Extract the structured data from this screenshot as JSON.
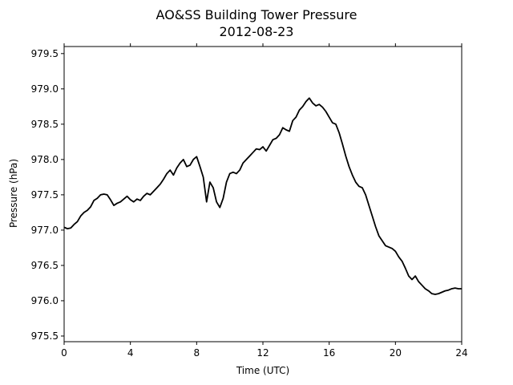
{
  "chart_data": {
    "type": "line",
    "title": "AO&SS Building Tower Pressure",
    "subtitle": "2012-08-23",
    "xlabel": "Time (UTC)",
    "ylabel": "Pressure (hPa)",
    "xlim": [
      0,
      24
    ],
    "ylim": [
      975.42,
      979.6
    ],
    "x_ticks": [
      0,
      4,
      8,
      12,
      16,
      20,
      24
    ],
    "x_tick_labels": [
      "0",
      "4",
      "8",
      "12",
      "16",
      "20",
      "24"
    ],
    "y_ticks": [
      975.5,
      976.0,
      976.5,
      977.0,
      977.5,
      978.0,
      978.5,
      979.0,
      979.5
    ],
    "y_tick_labels": [
      "975.5",
      "976.0",
      "976.5",
      "977.0",
      "977.5",
      "978.0",
      "978.5",
      "979.0",
      "979.5"
    ],
    "grid": false,
    "line_color": "#000000",
    "series": [
      {
        "x": [
          0.0,
          0.2,
          0.4,
          0.6,
          0.8,
          1.0,
          1.2,
          1.4,
          1.6,
          1.8,
          2.0,
          2.2,
          2.4,
          2.6,
          2.8,
          3.0,
          3.2,
          3.4,
          3.6,
          3.8,
          4.0,
          4.2,
          4.4,
          4.6,
          4.8,
          5.0,
          5.2,
          5.4,
          5.6,
          5.8,
          6.0,
          6.2,
          6.4,
          6.6,
          6.8,
          7.0,
          7.2,
          7.4,
          7.6,
          7.8,
          8.0,
          8.2,
          8.4,
          8.6,
          8.8,
          9.0,
          9.2,
          9.4,
          9.6,
          9.8,
          10.0,
          10.2,
          10.4,
          10.6,
          10.8,
          11.0,
          11.2,
          11.4,
          11.6,
          11.8,
          12.0,
          12.2,
          12.4,
          12.6,
          12.8,
          13.0,
          13.2,
          13.4,
          13.6,
          13.8,
          14.0,
          14.2,
          14.4,
          14.6,
          14.8,
          15.0,
          15.2,
          15.4,
          15.6,
          15.8,
          16.0,
          16.2,
          16.4,
          16.6,
          16.8,
          17.0,
          17.2,
          17.4,
          17.6,
          17.8,
          18.0,
          18.2,
          18.4,
          18.6,
          18.8,
          19.0,
          19.2,
          19.4,
          19.6,
          19.8,
          20.0,
          20.2,
          20.4,
          20.6,
          20.8,
          21.0,
          21.2,
          21.4,
          21.6,
          21.8,
          22.0,
          22.2,
          22.4,
          22.6,
          22.8,
          23.0,
          23.2,
          23.4,
          23.6,
          23.8,
          24.0
        ],
        "y": [
          977.04,
          977.02,
          977.03,
          977.08,
          977.12,
          977.2,
          977.25,
          977.28,
          977.33,
          977.42,
          977.45,
          977.5,
          977.51,
          977.5,
          977.43,
          977.35,
          977.38,
          977.4,
          977.44,
          977.48,
          977.43,
          977.4,
          977.44,
          977.42,
          977.48,
          977.52,
          977.5,
          977.55,
          977.6,
          977.65,
          977.72,
          977.8,
          977.85,
          977.78,
          977.88,
          977.95,
          978.0,
          977.9,
          977.92,
          978.0,
          978.04,
          977.9,
          977.75,
          977.4,
          977.68,
          977.6,
          977.4,
          977.32,
          977.45,
          977.68,
          977.8,
          977.82,
          977.8,
          977.85,
          977.95,
          978.0,
          978.05,
          978.1,
          978.15,
          978.14,
          978.18,
          978.12,
          978.2,
          978.28,
          978.3,
          978.35,
          978.45,
          978.42,
          978.4,
          978.55,
          978.6,
          978.7,
          978.75,
          978.82,
          978.87,
          978.8,
          978.76,
          978.78,
          978.74,
          978.68,
          978.6,
          978.52,
          978.5,
          978.38,
          978.22,
          978.05,
          977.9,
          977.78,
          977.68,
          977.62,
          977.6,
          977.5,
          977.35,
          977.2,
          977.05,
          976.92,
          976.85,
          976.78,
          976.76,
          976.74,
          976.7,
          976.62,
          976.56,
          976.46,
          976.35,
          976.3,
          976.35,
          976.27,
          976.22,
          976.17,
          976.14,
          976.1,
          976.09,
          976.1,
          976.12,
          976.14,
          976.15,
          976.17,
          976.18,
          976.17,
          976.17
        ]
      }
    ]
  }
}
